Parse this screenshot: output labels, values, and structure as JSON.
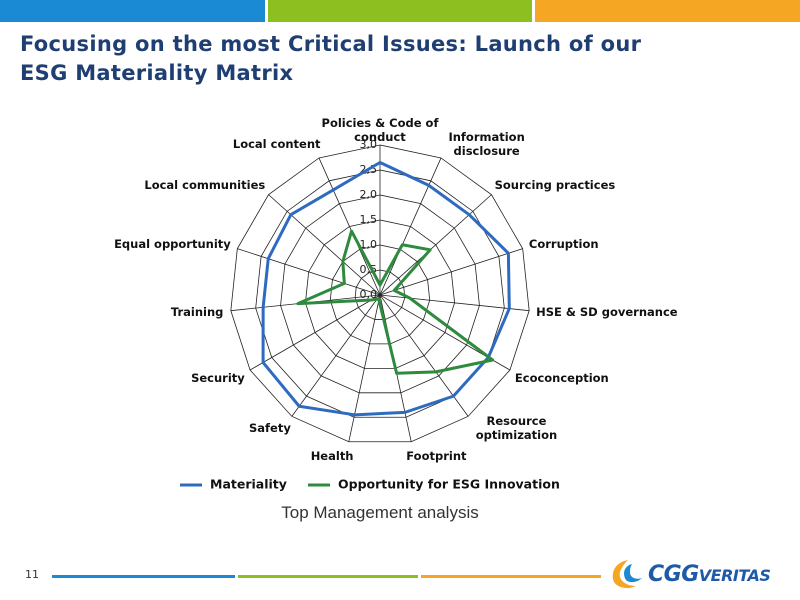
{
  "slide": {
    "title_lines": [
      "Focusing on the most Critical Issues: Launch of our",
      "ESG Materiality Matrix"
    ],
    "page_number": 11,
    "logo": [
      "CGG",
      "VERITAS"
    ]
  },
  "chart_data": {
    "type": "radar",
    "subtitle": "Top Management analysis",
    "categories": [
      "Policies & Code of conduct",
      "Information disclosure",
      "Sourcing practices",
      "Corruption",
      "HSE & SD governance",
      "Ecoconception",
      "Resource optimization",
      "Footprint",
      "Health",
      "Safety",
      "Security",
      "Training",
      "Equal opportunity",
      "Local communities",
      "Local content"
    ],
    "series": [
      {
        "name": "Materiality",
        "color": "#2e6bc0",
        "values": [
          2.65,
          2.4,
          2.4,
          2.7,
          2.6,
          2.5,
          2.5,
          2.4,
          2.45,
          2.75,
          2.7,
          2.35,
          2.35,
          2.4,
          2.3
        ]
      },
      {
        "name": "Opportunity for ESG Innovation",
        "color": "#2e8b3e",
        "values": [
          0.2,
          1.1,
          1.35,
          0.3,
          0.6,
          2.6,
          1.9,
          1.6,
          0.1,
          0.1,
          0.2,
          1.65,
          0.75,
          1.0,
          1.4
        ]
      }
    ],
    "ylim": [
      0,
      3
    ],
    "yticks": [
      {
        "value": 0,
        "label": "0,0"
      },
      {
        "value": 0.5,
        "label": "0,5"
      },
      {
        "value": 1,
        "label": "1,0"
      },
      {
        "value": 1.5,
        "label": "1,5"
      },
      {
        "value": 2,
        "label": "2,0"
      },
      {
        "value": 2.5,
        "label": "2,5"
      },
      {
        "value": 3,
        "label": "3,0"
      }
    ],
    "grid": true
  }
}
